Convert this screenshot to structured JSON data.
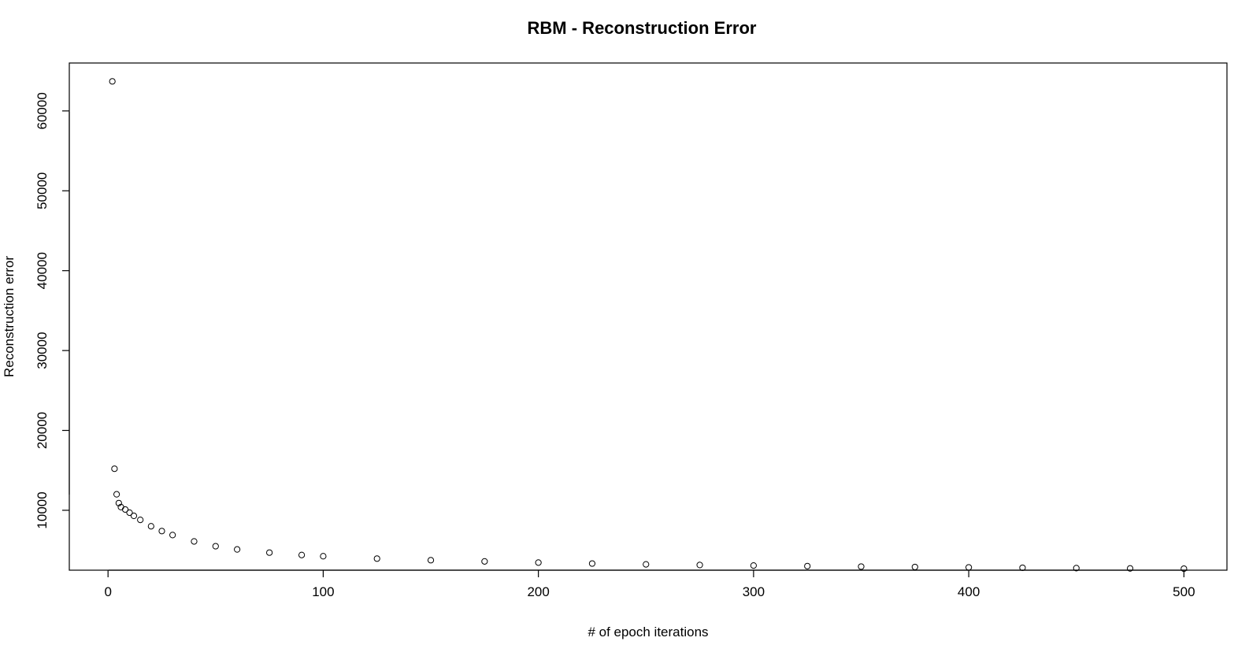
{
  "chart_data": {
    "type": "scatter",
    "title": "RBM - Reconstruction Error",
    "xlabel": "# of epoch iterations",
    "ylabel": "Reconstruction error",
    "xlim": [
      -18,
      520
    ],
    "ylim": [
      2500,
      66000
    ],
    "x_ticks": [
      0,
      100,
      200,
      300,
      400,
      500
    ],
    "y_ticks": [
      10000,
      20000,
      30000,
      40000,
      50000,
      60000
    ],
    "grid": false,
    "legend": "none",
    "marker": "open-circle",
    "series": [
      {
        "x": [
          2,
          3,
          4,
          5,
          6,
          8,
          10,
          12,
          15,
          20,
          25,
          30,
          40,
          50,
          60,
          75,
          90,
          100,
          125,
          150,
          175,
          200,
          225,
          250,
          275,
          300,
          325,
          350,
          375,
          400,
          425,
          450,
          475,
          500
        ],
        "y": [
          63700,
          15200,
          12000,
          10900,
          10400,
          10100,
          9700,
          9300,
          8800,
          8000,
          7400,
          6900,
          6100,
          5500,
          5100,
          4700,
          4400,
          4250,
          3950,
          3750,
          3600,
          3450,
          3330,
          3230,
          3150,
          3080,
          3010,
          2950,
          2900,
          2850,
          2800,
          2760,
          2720,
          2690
        ]
      }
    ]
  }
}
